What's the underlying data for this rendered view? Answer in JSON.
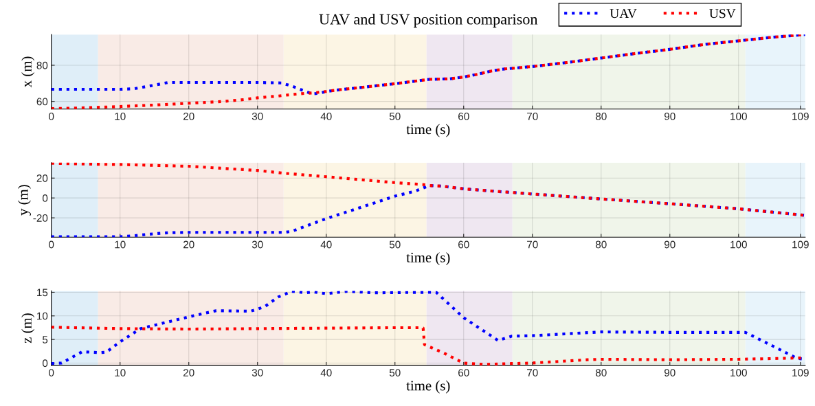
{
  "chart_data": [
    {
      "type": "line",
      "title": "UAV and USV position comparison",
      "xlabel": "time (s)",
      "ylabel": "x (m)",
      "xlim": [
        0,
        109.7
      ],
      "xticks": [
        0,
        10,
        20,
        30,
        40,
        50,
        60,
        70,
        80,
        90,
        100,
        109
      ],
      "ylim": [
        55.8,
        97
      ],
      "yticks": [
        60,
        80
      ],
      "grid": true,
      "legend": "top right",
      "line_style": "dotted",
      "marker": "none",
      "bands": [
        {
          "axis": "x",
          "from": 0,
          "to": 6.8,
          "color": "#dfeef8"
        },
        {
          "axis": "x",
          "from": 6.8,
          "to": 33.8,
          "color": "#f9ebe6"
        },
        {
          "axis": "x",
          "from": 33.8,
          "to": 54.6,
          "color": "#fcf5e4"
        },
        {
          "axis": "x",
          "from": 54.6,
          "to": 67.1,
          "color": "#efe7f1"
        },
        {
          "axis": "x",
          "from": 67.1,
          "to": 101,
          "color": "#f0f5ea"
        },
        {
          "axis": "x",
          "from": 101,
          "to": 109.7,
          "color": "#e8f4fb"
        }
      ],
      "series": [
        {
          "name": "UAV",
          "color": "#0000ff",
          "x": [
            0,
            5,
            10,
            12,
            15,
            17,
            20,
            30,
            33.5,
            35,
            37,
            38,
            39,
            40,
            42,
            45,
            50,
            55,
            58,
            60,
            62,
            64,
            66,
            67,
            70,
            75,
            80,
            85,
            90,
            95,
            100,
            105,
            109.7
          ],
          "values": [
            66.7,
            66.7,
            66.7,
            67,
            69,
            70.5,
            70.5,
            70.5,
            70.2,
            68.5,
            65.5,
            64.2,
            64.5,
            65.5,
            66.5,
            67.7,
            69.8,
            72.2,
            72.5,
            73.5,
            75,
            76.8,
            78,
            78.3,
            79.3,
            81.5,
            84,
            86.5,
            88.8,
            91.5,
            93.5,
            95.5,
            97
          ]
        },
        {
          "name": "USV",
          "color": "#ff0000",
          "x": [
            0,
            5,
            10,
            15,
            20,
            25,
            28,
            30,
            33,
            35,
            37,
            38,
            40,
            42,
            45,
            50,
            55,
            58,
            60,
            62,
            64,
            66,
            67,
            70,
            75,
            80,
            85,
            90,
            95,
            100,
            105,
            109.7
          ],
          "values": [
            56,
            56.5,
            57.2,
            58,
            59,
            60,
            61,
            62,
            63,
            63.8,
            64.5,
            64.7,
            65.5,
            66.5,
            67.7,
            69.8,
            72.2,
            72.5,
            73.5,
            75,
            76.8,
            78,
            78.3,
            79.3,
            81.5,
            84,
            86.5,
            88.8,
            91.5,
            93.5,
            95.5,
            97
          ]
        }
      ]
    },
    {
      "type": "line",
      "xlabel": "time (s)",
      "ylabel": "y (m)",
      "xlim": [
        0,
        109.7
      ],
      "xticks": [
        0,
        10,
        20,
        30,
        40,
        50,
        60,
        70,
        80,
        90,
        100,
        109
      ],
      "ylim": [
        -39.5,
        35.5
      ],
      "yticks": [
        -20,
        0,
        20
      ],
      "grid": true,
      "line_style": "dotted",
      "marker": "none",
      "bands": [
        {
          "axis": "x",
          "from": 0,
          "to": 6.8,
          "color": "#dfeef8"
        },
        {
          "axis": "x",
          "from": 6.8,
          "to": 33.8,
          "color": "#f9ebe6"
        },
        {
          "axis": "x",
          "from": 33.8,
          "to": 54.6,
          "color": "#fcf5e4"
        },
        {
          "axis": "x",
          "from": 54.6,
          "to": 67.1,
          "color": "#efe7f1"
        },
        {
          "axis": "x",
          "from": 67.1,
          "to": 101,
          "color": "#f0f5ea"
        },
        {
          "axis": "x",
          "from": 101,
          "to": 109.7,
          "color": "#e8f4fb"
        }
      ],
      "series": [
        {
          "color": "#0000ff",
          "x": [
            0,
            10,
            12,
            15,
            17,
            20,
            30,
            34,
            35,
            40,
            45,
            50,
            53,
            55,
            57,
            60,
            65,
            67,
            70,
            75,
            80,
            90,
            100,
            105,
            109.7
          ],
          "values": [
            -39,
            -39,
            -38,
            -36,
            -35,
            -34.6,
            -34.6,
            -34.6,
            -33.5,
            -20.8,
            -9.5,
            1.8,
            7,
            12.5,
            11.8,
            9.2,
            6.5,
            5.6,
            4,
            1.5,
            -1,
            -5.8,
            -10.9,
            -14.3,
            -17.5
          ]
        },
        {
          "color": "#ff0000",
          "x": [
            0,
            7,
            10,
            20,
            30,
            34,
            40,
            50,
            54,
            55,
            57,
            60,
            65,
            67,
            70,
            75,
            80,
            90,
            100,
            105,
            109.7
          ],
          "values": [
            35,
            33.9,
            33.7,
            31.9,
            27.7,
            24.8,
            21.4,
            15.4,
            13.6,
            12.5,
            11.8,
            9.2,
            6.5,
            5.6,
            4,
            1.5,
            -1,
            -5.8,
            -10.9,
            -14.3,
            -17.5
          ]
        }
      ]
    },
    {
      "type": "line",
      "xlabel": "time (s)",
      "ylabel": "z (m)",
      "xlim": [
        0,
        109.7
      ],
      "xticks": [
        0,
        10,
        20,
        30,
        40,
        50,
        60,
        70,
        80,
        90,
        100,
        109
      ],
      "ylim": [
        -0.5,
        15.3
      ],
      "yticks": [
        0,
        5,
        10,
        15
      ],
      "grid": true,
      "line_style": "dotted",
      "marker": "none",
      "bands": [
        {
          "axis": "x",
          "from": 0,
          "to": 6.8,
          "color": "#dfeef8"
        },
        {
          "axis": "x",
          "from": 6.8,
          "to": 33.8,
          "color": "#f9ebe6"
        },
        {
          "axis": "x",
          "from": 33.8,
          "to": 54.6,
          "color": "#fcf5e4"
        },
        {
          "axis": "x",
          "from": 54.6,
          "to": 67.1,
          "color": "#efe7f1"
        },
        {
          "axis": "x",
          "from": 67.1,
          "to": 101,
          "color": "#f0f5ea"
        },
        {
          "axis": "x",
          "from": 101,
          "to": 109.7,
          "color": "#e8f4fb"
        }
      ],
      "series": [
        {
          "color": "#0000ff",
          "x": [
            0,
            1.5,
            3,
            4.5,
            7,
            8,
            10,
            13,
            20,
            24,
            29,
            31,
            33,
            35,
            37,
            38,
            40,
            43,
            47,
            55,
            56,
            60,
            65,
            67,
            70,
            75,
            80,
            90,
            101,
            105,
            108.5,
            109.7
          ],
          "values": [
            -0.1,
            0,
            1.2,
            2.4,
            2.2,
            2.3,
            4.5,
            7.3,
            9.8,
            11.1,
            11,
            11.9,
            14,
            15.2,
            14.9,
            15.1,
            14.7,
            15.2,
            14.9,
            15,
            15,
            9.6,
            4.8,
            5.7,
            5.8,
            6.2,
            6.6,
            6.5,
            6.5,
            3.6,
            1,
            0.8
          ]
        },
        {
          "color": "#ff0000",
          "x": [
            0,
            10,
            20,
            30,
            40,
            50,
            53.5,
            54.1,
            54.3,
            57,
            60,
            63,
            67,
            70,
            78,
            80,
            90,
            100,
            109.7
          ],
          "values": [
            7.6,
            7.3,
            7.2,
            7.3,
            7.4,
            7.5,
            7.5,
            7.4,
            3.9,
            2.2,
            0,
            -0.3,
            -0.1,
            0,
            0.7,
            0.8,
            0.7,
            0.8,
            1.1
          ]
        }
      ]
    }
  ]
}
